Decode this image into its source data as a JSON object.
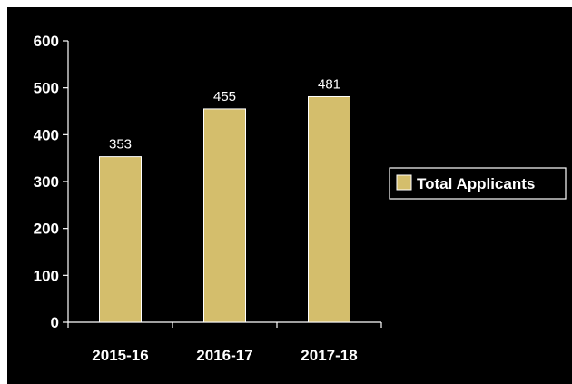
{
  "chart_data": {
    "type": "bar",
    "categories": [
      "2015-16",
      "2016-17",
      "2017-18"
    ],
    "series": [
      {
        "name": "Total Applicants",
        "values": [
          353,
          455,
          481
        ]
      }
    ],
    "ylim": [
      0,
      600
    ],
    "yticks": [
      0,
      100,
      200,
      300,
      400,
      500,
      600
    ],
    "title": "",
    "xlabel": "",
    "ylabel": "",
    "grid": false,
    "legend_position": "right",
    "colors": {
      "background": "#000000",
      "bar": "#d4be6c",
      "bar_outline": "#ffffff",
      "axis": "#ffffff",
      "text": "#ffffff"
    }
  }
}
